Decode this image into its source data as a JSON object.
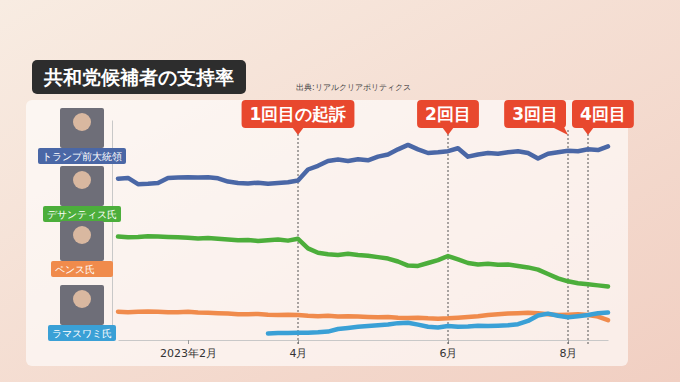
{
  "chart_data": {
    "type": "line",
    "title": "共和党候補者の支持率",
    "source": "出典:リアルクリアポリティクス",
    "categories": [
      null,
      null,
      null,
      null,
      null,
      null,
      null,
      "2023年2月",
      null,
      null,
      null,
      null,
      null,
      null,
      null,
      null,
      null,
      null,
      "4月",
      null,
      null,
      null,
      null,
      null,
      null,
      null,
      null,
      null,
      null,
      null,
      null,
      null,
      null,
      "6月",
      null,
      null,
      null,
      null,
      null,
      null,
      null,
      null,
      null,
      null,
      null,
      "8月",
      null,
      null,
      null,
      null
    ],
    "ylim": [
      0,
      60
    ],
    "tick_labels": "x",
    "grid": false,
    "series": [
      {
        "name": "トランプ前大統領",
        "color": "#4a67a6",
        "values": [
          44.0,
          44.2,
          42.5,
          42.6,
          42.8,
          44.2,
          44.3,
          44.4,
          44.3,
          44.4,
          44.1,
          43.2,
          42.8,
          42.7,
          42.9,
          42.6,
          42.8,
          43.0,
          43.5,
          46.5,
          47.5,
          48.8,
          49.2,
          48.8,
          49.3,
          49.0,
          50.0,
          50.6,
          52.0,
          53.2,
          52.0,
          51.0,
          51.2,
          51.5,
          52.3,
          50.0,
          50.6,
          51.0,
          50.8,
          51.2,
          51.5,
          51.0,
          49.5,
          50.8,
          51.2,
          51.6,
          51.5,
          52.0,
          51.8,
          52.8
        ]
      },
      {
        "name": "デサンティス氏",
        "color": "#4cae3b",
        "values": [
          28.2,
          28.0,
          28.1,
          28.3,
          28.2,
          28.1,
          28.0,
          27.9,
          27.7,
          27.8,
          27.6,
          27.4,
          27.2,
          27.3,
          27.0,
          27.2,
          27.4,
          27.1,
          27.6,
          25.0,
          23.8,
          23.4,
          23.2,
          23.5,
          23.2,
          23.0,
          22.6,
          22.2,
          21.4,
          20.3,
          20.2,
          21.0,
          21.8,
          22.9,
          22.0,
          21.0,
          20.6,
          20.8,
          20.5,
          20.6,
          20.2,
          19.8,
          19.2,
          18.0,
          16.8,
          16.0,
          15.5,
          15.2,
          14.9,
          14.6
        ]
      },
      {
        "name": "ペンス氏",
        "color": "#f08b4c",
        "values": [
          7.7,
          7.6,
          7.7,
          7.8,
          7.7,
          7.6,
          7.6,
          7.7,
          7.5,
          7.4,
          7.3,
          7.2,
          7.0,
          7.0,
          7.1,
          6.9,
          6.8,
          6.9,
          6.8,
          6.6,
          6.5,
          6.6,
          6.4,
          6.5,
          6.4,
          6.3,
          6.2,
          6.3,
          6.1,
          6.0,
          6.1,
          5.9,
          5.8,
          5.9,
          6.1,
          6.3,
          6.5,
          6.8,
          7.0,
          7.2,
          7.3,
          7.4,
          7.3,
          7.0,
          6.8,
          6.9,
          7.0,
          6.8,
          6.4,
          5.4
        ]
      },
      {
        "name": "ラマスワミ氏",
        "color": "#3aa0d6",
        "values": [
          null,
          null,
          null,
          null,
          null,
          null,
          null,
          null,
          null,
          null,
          null,
          null,
          null,
          null,
          null,
          1.8,
          1.9,
          1.9,
          2.0,
          2.0,
          2.1,
          2.3,
          3.0,
          3.3,
          3.6,
          3.8,
          4.0,
          4.2,
          4.6,
          4.7,
          4.2,
          3.6,
          3.4,
          3.8,
          3.6,
          3.7,
          3.9,
          3.8,
          3.9,
          4.0,
          4.3,
          5.2,
          6.7,
          7.2,
          6.6,
          6.2,
          6.5,
          6.8,
          7.3,
          7.5
        ]
      }
    ],
    "annotations": [
      {
        "text": "1回目の起訴",
        "index": 18
      },
      {
        "text": "2回目",
        "index": 33
      },
      {
        "text": "3回目",
        "index": 45
      },
      {
        "text": "4回目",
        "index": 47
      }
    ]
  }
}
